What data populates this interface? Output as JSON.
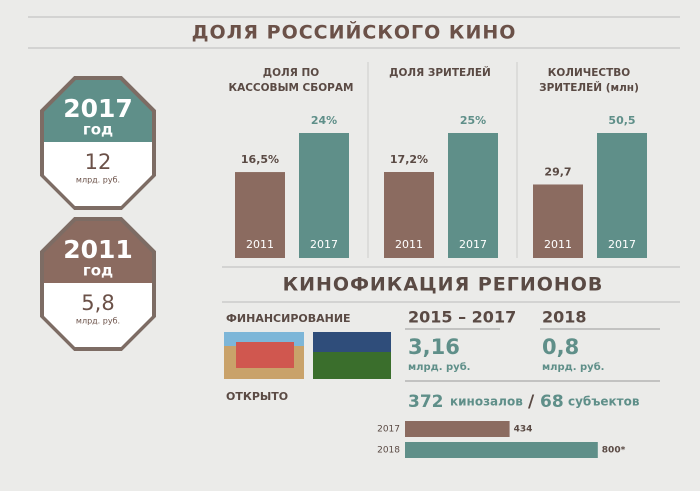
{
  "title": "ДОЛЯ РОССИЙСКОГО КИНО",
  "badges": [
    {
      "year": "2017",
      "label": "год",
      "value": "12",
      "unit": "млрд. руб."
    },
    {
      "year": "2011",
      "label": "год",
      "value": "5,8",
      "unit": "млрд. руб."
    }
  ],
  "chart_data": [
    {
      "type": "bar",
      "title": "ДОЛЯ ПО КАССОВЫМ СБОРАМ",
      "categories": [
        "2011",
        "2017"
      ],
      "values": [
        16.5,
        24
      ],
      "value_labels": [
        "16,5%",
        "24%"
      ],
      "colors": [
        "#8b6b60",
        "#5f8f89"
      ]
    },
    {
      "type": "bar",
      "title": "ДОЛЯ ЗРИТЕЛЕЙ",
      "categories": [
        "2011",
        "2017"
      ],
      "values": [
        17.2,
        25
      ],
      "value_labels": [
        "17,2%",
        "25%"
      ],
      "colors": [
        "#8b6b60",
        "#5f8f89"
      ]
    },
    {
      "type": "bar",
      "title": "КОЛИЧЕСТВО ЗРИТЕЛЕЙ (млн)",
      "categories": [
        "2011",
        "2017"
      ],
      "values": [
        29.7,
        50.5
      ],
      "value_labels": [
        "29,7",
        "50,5"
      ],
      "colors": [
        "#8b6b60",
        "#5f8f89"
      ]
    },
    {
      "type": "barh",
      "categories": [
        "2017",
        "2018"
      ],
      "values": [
        434,
        800
      ],
      "value_labels": [
        "434",
        "800*"
      ],
      "colors": [
        "#8b6b60",
        "#5f8f89"
      ]
    }
  ],
  "section": {
    "title": "КИНОФИКАЦИЯ РЕГИОНОВ",
    "financing": {
      "label": "ФИНАНСИРОВАНИЕ",
      "columns": [
        {
          "period": "2015 – 2017",
          "value": "3,16",
          "unit": "млрд. руб."
        },
        {
          "period": "2018",
          "value": "0,8",
          "unit": "млрд. руб."
        }
      ]
    },
    "opened": {
      "label": "ОТКРЫТО",
      "count1": "372",
      "unit1": "кинозалов",
      "sep": "/",
      "count2": "68",
      "unit2": "субъектов"
    }
  }
}
